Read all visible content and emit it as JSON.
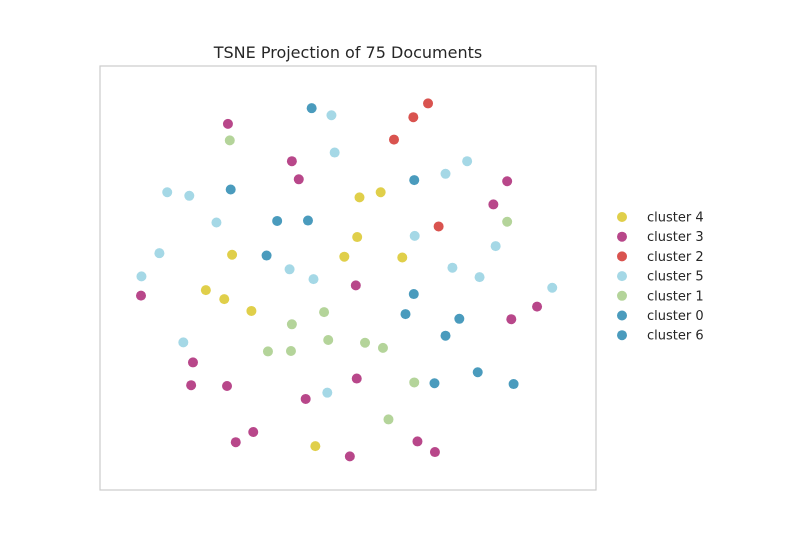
{
  "chart_data": {
    "type": "scatter",
    "title": "TSNE Projection of 75 Documents",
    "xlabel": "",
    "ylabel": "",
    "xlim": [
      0,
      100
    ],
    "ylim": [
      0,
      100
    ],
    "axes_visible": false,
    "grid": false,
    "legend_position": "right",
    "series": [
      {
        "name": "cluster 4",
        "color": "#e0cf4a",
        "points": [
          [
            52.5,
            70.9
          ],
          [
            57.1,
            72.2
          ],
          [
            24.8,
            56.3
          ],
          [
            52.0,
            60.8
          ],
          [
            49.2,
            55.8
          ],
          [
            61.8,
            55.6
          ],
          [
            19.1,
            47.3
          ],
          [
            23.1,
            45.0
          ],
          [
            29.0,
            42.0
          ],
          [
            42.9,
            7.6
          ]
        ]
      },
      {
        "name": "cluster 3",
        "color": "#b8478a",
        "points": [
          [
            23.9,
            89.6
          ],
          [
            37.8,
            80.1
          ],
          [
            39.3,
            75.5
          ],
          [
            84.6,
            75.0
          ],
          [
            81.6,
            69.1
          ],
          [
            5.0,
            45.9
          ],
          [
            51.7,
            48.5
          ],
          [
            85.5,
            39.9
          ],
          [
            91.1,
            43.1
          ],
          [
            16.3,
            28.9
          ],
          [
            15.9,
            23.1
          ],
          [
            23.7,
            22.9
          ],
          [
            51.9,
            24.8
          ],
          [
            40.8,
            19.6
          ],
          [
            29.4,
            11.2
          ],
          [
            25.6,
            8.6
          ],
          [
            65.1,
            8.8
          ],
          [
            68.9,
            6.1
          ],
          [
            50.4,
            5.0
          ]
        ]
      },
      {
        "name": "cluster 2",
        "color": "#d9534f",
        "points": [
          [
            67.4,
            94.8
          ],
          [
            64.2,
            91.3
          ],
          [
            60.0,
            85.6
          ],
          [
            69.7,
            63.5
          ]
        ]
      },
      {
        "name": "cluster 5",
        "color": "#a5d8e6",
        "points": [
          [
            46.4,
            91.8
          ],
          [
            47.1,
            82.3
          ],
          [
            75.9,
            80.1
          ],
          [
            71.2,
            76.9
          ],
          [
            10.7,
            72.2
          ],
          [
            15.5,
            71.3
          ],
          [
            21.4,
            64.5
          ],
          [
            64.5,
            61.1
          ],
          [
            82.1,
            58.5
          ],
          [
            9.0,
            56.7
          ],
          [
            37.3,
            52.6
          ],
          [
            42.5,
            50.1
          ],
          [
            72.7,
            53.0
          ],
          [
            78.6,
            50.6
          ],
          [
            94.4,
            47.9
          ],
          [
            5.1,
            50.8
          ],
          [
            14.2,
            34.0
          ],
          [
            45.5,
            21.2
          ]
        ]
      },
      {
        "name": "cluster 1",
        "color": "#b4d49a",
        "points": [
          [
            24.3,
            85.4
          ],
          [
            84.6,
            64.7
          ],
          [
            37.8,
            38.6
          ],
          [
            44.8,
            41.7
          ],
          [
            45.7,
            34.6
          ],
          [
            53.7,
            33.9
          ],
          [
            57.6,
            32.6
          ],
          [
            32.6,
            31.7
          ],
          [
            37.6,
            31.8
          ],
          [
            64.4,
            23.8
          ],
          [
            58.8,
            14.4
          ]
        ]
      },
      {
        "name": "cluster 0",
        "color": "#4a9bbd",
        "points": [
          [
            42.1,
            93.6
          ],
          [
            64.4,
            75.3
          ],
          [
            24.5,
            72.9
          ],
          [
            34.6,
            64.9
          ],
          [
            41.3,
            65.0
          ],
          [
            32.3,
            56.1
          ],
          [
            64.3,
            46.3
          ],
          [
            62.5,
            41.2
          ],
          [
            74.2,
            40.0
          ],
          [
            71.2,
            35.7
          ],
          [
            78.2,
            26.4
          ],
          [
            86.0,
            23.4
          ],
          [
            68.8,
            23.6
          ]
        ]
      },
      {
        "name": "cluster 6",
        "color": "#4a9bbd",
        "points": []
      }
    ]
  }
}
